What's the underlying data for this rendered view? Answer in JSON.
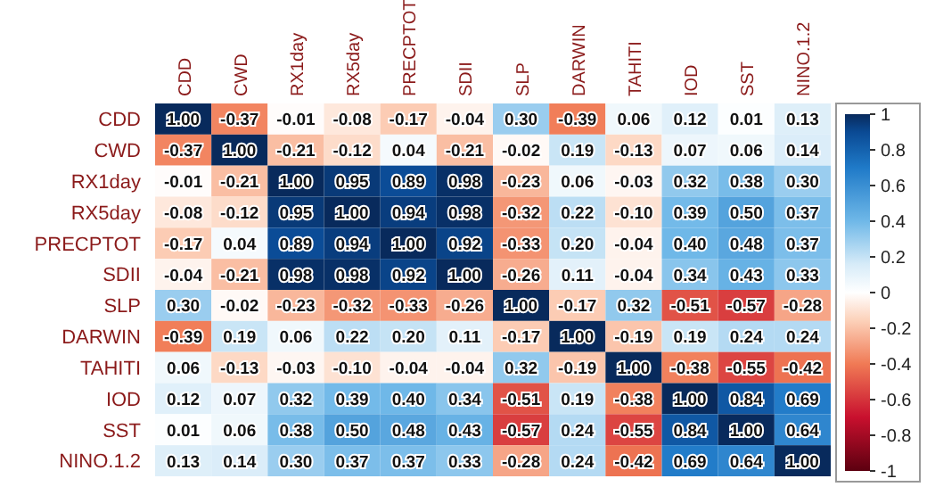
{
  "chart_data": {
    "type": "heatmap",
    "categories": [
      "CDD",
      "CWD",
      "RX1day",
      "RX5day",
      "PRECPTOT",
      "SDII",
      "SLP",
      "DARWIN",
      "TAHITI",
      "IOD",
      "SST",
      "NINO.1.2"
    ],
    "y_categories": [
      "CDD",
      "CWD",
      "RX1day",
      "RX5day",
      "PRECPTOT",
      "SDII",
      "SLP",
      "DARWIN",
      "TAHITI",
      "IOD",
      "SST",
      "NINO.1.2"
    ],
    "cells": [
      [
        1.0,
        -0.37,
        -0.01,
        -0.08,
        -0.17,
        -0.04,
        0.3,
        -0.39,
        0.06,
        0.12,
        0.01,
        0.13
      ],
      [
        -0.37,
        1.0,
        -0.21,
        -0.12,
        0.04,
        -0.21,
        -0.02,
        0.19,
        -0.13,
        0.07,
        0.06,
        0.14
      ],
      [
        -0.01,
        -0.21,
        1.0,
        0.95,
        0.89,
        0.98,
        -0.23,
        0.06,
        -0.03,
        0.32,
        0.38,
        0.3
      ],
      [
        -0.08,
        -0.12,
        0.95,
        1.0,
        0.94,
        0.98,
        -0.32,
        0.22,
        -0.1,
        0.39,
        0.5,
        0.37
      ],
      [
        -0.17,
        0.04,
        0.89,
        0.94,
        1.0,
        0.92,
        -0.33,
        0.2,
        -0.04,
        0.4,
        0.48,
        0.37
      ],
      [
        -0.04,
        -0.21,
        0.98,
        0.98,
        0.92,
        1.0,
        -0.26,
        0.11,
        -0.04,
        0.34,
        0.43,
        0.33
      ],
      [
        0.3,
        -0.02,
        -0.23,
        -0.32,
        -0.33,
        -0.26,
        1.0,
        -0.17,
        0.32,
        -0.51,
        -0.57,
        -0.28
      ],
      [
        -0.39,
        0.19,
        0.06,
        0.22,
        0.2,
        0.11,
        -0.17,
        1.0,
        -0.19,
        0.19,
        0.24,
        0.24
      ],
      [
        0.06,
        -0.13,
        -0.03,
        -0.1,
        -0.04,
        -0.04,
        0.32,
        -0.19,
        1.0,
        -0.38,
        -0.55,
        -0.42
      ],
      [
        0.12,
        0.07,
        0.32,
        0.39,
        0.4,
        0.34,
        -0.51,
        0.19,
        -0.38,
        1.0,
        0.84,
        0.69
      ],
      [
        0.01,
        0.06,
        0.38,
        0.5,
        0.48,
        0.43,
        -0.57,
        0.24,
        -0.55,
        0.84,
        1.0,
        0.64
      ],
      [
        0.13,
        0.14,
        0.3,
        0.37,
        0.37,
        0.33,
        -0.28,
        0.24,
        -0.42,
        0.69,
        0.64,
        1.0
      ]
    ],
    "cell_labels": [
      [
        "1.00",
        "-0.37",
        "-0.01",
        "-0.08",
        "-0.17",
        "-0.04",
        "0.30",
        "-0.39",
        "0.06",
        "0.12",
        "0.01",
        "0.13"
      ],
      [
        "-0.37",
        "1.00",
        "-0.21",
        "-0.12",
        "0.04",
        "-0.21",
        "-0.02",
        "0.19",
        "-0.13",
        "0.07",
        "0.06",
        "0.14"
      ],
      [
        "-0.01",
        "-0.21",
        "1.00",
        "0.95",
        "0.89",
        "0.98",
        "-0.23",
        "0.06",
        "-0.03",
        "0.32",
        "0.38",
        "0.30"
      ],
      [
        "-0.08",
        "-0.12",
        "0.95",
        "1.00",
        "0.94",
        "0.98",
        "-0.32",
        "0.22",
        "-0.10",
        "0.39",
        "0.50",
        "0.37"
      ],
      [
        "-0.17",
        "0.04",
        "0.89",
        "0.94",
        "1.00",
        "0.92",
        "-0.33",
        "0.20",
        "-0.04",
        "0.40",
        "0.48",
        "0.37"
      ],
      [
        "-0.04",
        "-0.21",
        "0.98",
        "0.98",
        "0.92",
        "1.00",
        "-0.26",
        "0.11",
        "-0.04",
        "0.34",
        "0.43",
        "0.33"
      ],
      [
        "0.30",
        "-0.02",
        "-0.23",
        "-0.32",
        "-0.33",
        "-0.26",
        "1.00",
        "-0.17",
        "0.32",
        "-0.51",
        "-0.57",
        "-0.28"
      ],
      [
        "-0.39",
        "0.19",
        "0.06",
        "0.22",
        "0.20",
        "0.11",
        "-0.17",
        "1.00",
        "-0.19",
        "0.19",
        "0.24",
        "0.24"
      ],
      [
        "0.06",
        "-0.13",
        "-0.03",
        "-0.10",
        "-0.04",
        "-0.04",
        "0.32",
        "-0.19",
        "1.00",
        "-0.38",
        "-0.55",
        "-0.42"
      ],
      [
        "0.12",
        "0.07",
        "0.32",
        "0.39",
        "0.40",
        "0.34",
        "-0.51",
        "0.19",
        "-0.38",
        "1.00",
        "0.84",
        "0.69"
      ],
      [
        "0.01",
        "0.06",
        "0.38",
        "0.50",
        "0.48",
        "0.43",
        "-0.57",
        "0.24",
        "-0.55",
        "0.84",
        "1.00",
        "0.64"
      ],
      [
        "0.13",
        "0.14",
        "0.30",
        "0.37",
        "0.37",
        "0.33",
        "-0.28",
        "0.24",
        "-0.42",
        "0.69",
        "0.64",
        "1.00"
      ]
    ],
    "data_labels": true,
    "clim": [
      -1,
      1
    ],
    "cticks": [
      1,
      0.8,
      0.6,
      0.4,
      0.2,
      0,
      -0.2,
      -0.4,
      -0.6,
      -0.8,
      -1
    ]
  }
}
